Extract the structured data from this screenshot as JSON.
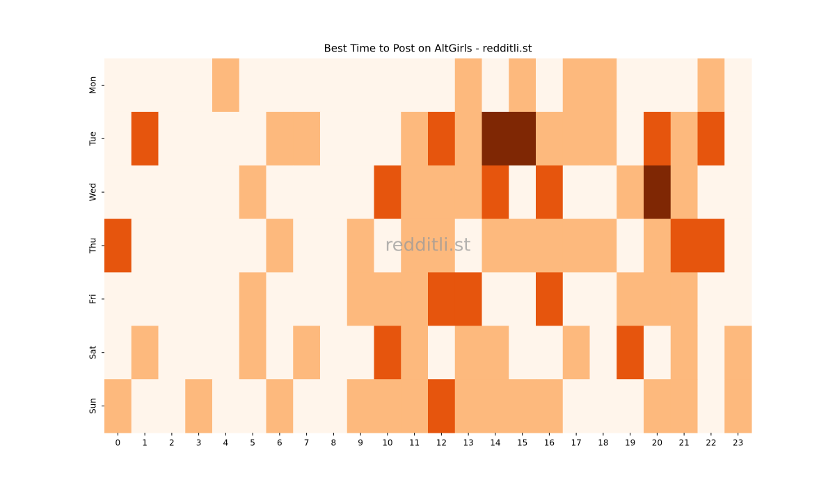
{
  "chart_data": {
    "type": "heatmap",
    "title": "Best Time to Post on AltGirls - redditli.st",
    "watermark": "redditli.st",
    "x_categories": [
      0,
      1,
      2,
      3,
      4,
      5,
      6,
      7,
      8,
      9,
      10,
      11,
      12,
      13,
      14,
      15,
      16,
      17,
      18,
      19,
      20,
      21,
      22,
      23
    ],
    "y_categories": [
      "Mon",
      "Tue",
      "Wed",
      "Thu",
      "Fri",
      "Sat",
      "Sun"
    ],
    "values": [
      [
        0,
        0,
        0,
        0,
        1,
        0,
        0,
        0,
        0,
        0,
        0,
        0,
        0,
        1,
        0,
        1,
        0,
        1,
        1,
        0,
        0,
        0,
        1,
        0
      ],
      [
        0,
        2,
        0,
        0,
        0,
        0,
        1,
        1,
        0,
        0,
        0,
        1,
        2,
        1,
        3,
        3,
        1,
        1,
        1,
        0,
        2,
        1,
        2,
        0
      ],
      [
        0,
        0,
        0,
        0,
        0,
        1,
        0,
        0,
        0,
        0,
        2,
        1,
        1,
        1,
        2,
        0,
        2,
        0,
        0,
        1,
        3,
        1,
        0,
        0
      ],
      [
        2,
        0,
        0,
        0,
        0,
        0,
        1,
        0,
        0,
        1,
        0,
        1,
        1,
        0,
        1,
        1,
        1,
        1,
        1,
        0,
        1,
        2,
        2,
        0
      ],
      [
        0,
        0,
        0,
        0,
        0,
        1,
        0,
        0,
        0,
        1,
        1,
        1,
        2,
        2,
        0,
        0,
        2,
        0,
        0,
        1,
        1,
        1,
        0,
        0
      ],
      [
        0,
        1,
        0,
        0,
        0,
        1,
        0,
        1,
        0,
        0,
        2,
        1,
        0,
        1,
        1,
        0,
        0,
        1,
        0,
        2,
        0,
        1,
        0,
        1
      ],
      [
        1,
        0,
        0,
        1,
        0,
        0,
        1,
        0,
        0,
        1,
        1,
        1,
        2,
        1,
        1,
        1,
        1,
        0,
        0,
        0,
        1,
        1,
        0,
        1
      ]
    ],
    "zlim": [
      0,
      3
    ],
    "color_scale": [
      "#fff5eb",
      "#fdb97d",
      "#e6550d",
      "#7f2704"
    ]
  }
}
